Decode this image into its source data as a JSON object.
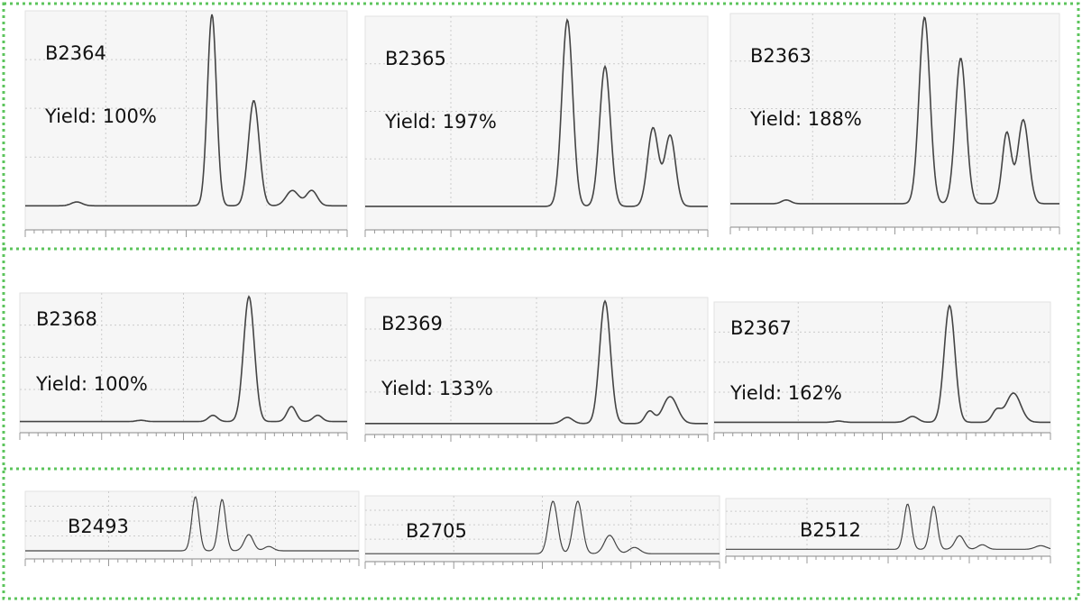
{
  "rows": [
    {
      "panels": [
        {
          "label": "B2364",
          "yield": "Yield: 100%"
        },
        {
          "label": "B2365",
          "yield": "Yield: 197%"
        },
        {
          "label": "B2363",
          "yield": "Yield: 188%"
        }
      ]
    },
    {
      "panels": [
        {
          "label": "B2368",
          "yield": "Yield: 100%"
        },
        {
          "label": "B2369",
          "yield": "Yield: 133%"
        },
        {
          "label": "B2367",
          "yield": "Yield: 162%"
        }
      ]
    },
    {
      "panels": [
        {
          "label": "B2493"
        },
        {
          "label": "B2705"
        },
        {
          "label": "B2512"
        }
      ]
    }
  ]
}
